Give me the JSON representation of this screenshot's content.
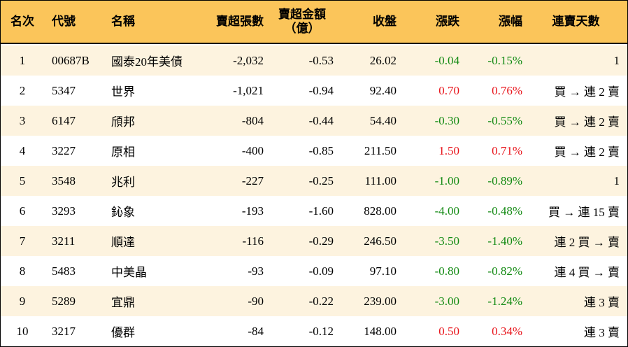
{
  "header": {
    "rank": "名次",
    "code": "代號",
    "name": "名稱",
    "volume": "賣超張數",
    "amount_line1": "賣超金額",
    "amount_line2": "（億）",
    "close": "收盤",
    "change": "漲跌",
    "pct": "漲幅",
    "days": "連賣天數"
  },
  "colors": {
    "header_bg": "#fbc55a",
    "alt_row_bg": "#fdf3df",
    "up": "#e8141b",
    "down": "#138a13"
  },
  "rows": [
    {
      "rank": "1",
      "code": "00687B",
      "name": "國泰20年美債",
      "volume": "-2,032",
      "amount": "-0.53",
      "close": "26.02",
      "change": "-0.04",
      "pct": "-0.15%",
      "days": "1",
      "dir": "down"
    },
    {
      "rank": "2",
      "code": "5347",
      "name": "世界",
      "volume": "-1,021",
      "amount": "-0.94",
      "close": "92.40",
      "change": "0.70",
      "pct": "0.76%",
      "days": "買 → 連 2 賣",
      "dir": "up"
    },
    {
      "rank": "3",
      "code": "6147",
      "name": "頎邦",
      "volume": "-804",
      "amount": "-0.44",
      "close": "54.40",
      "change": "-0.30",
      "pct": "-0.55%",
      "days": "買 → 連 2 賣",
      "dir": "down"
    },
    {
      "rank": "4",
      "code": "3227",
      "name": "原相",
      "volume": "-400",
      "amount": "-0.85",
      "close": "211.50",
      "change": "1.50",
      "pct": "0.71%",
      "days": "買 → 連 2 賣",
      "dir": "up"
    },
    {
      "rank": "5",
      "code": "3548",
      "name": "兆利",
      "volume": "-227",
      "amount": "-0.25",
      "close": "111.00",
      "change": "-1.00",
      "pct": "-0.89%",
      "days": "1",
      "dir": "down"
    },
    {
      "rank": "6",
      "code": "3293",
      "name": "鈊象",
      "volume": "-193",
      "amount": "-1.60",
      "close": "828.00",
      "change": "-4.00",
      "pct": "-0.48%",
      "days": "買 → 連 15 賣",
      "dir": "down"
    },
    {
      "rank": "7",
      "code": "3211",
      "name": "順達",
      "volume": "-116",
      "amount": "-0.29",
      "close": "246.50",
      "change": "-3.50",
      "pct": "-1.40%",
      "days": "連 2 買 → 賣",
      "dir": "down"
    },
    {
      "rank": "8",
      "code": "5483",
      "name": "中美晶",
      "volume": "-93",
      "amount": "-0.09",
      "close": "97.10",
      "change": "-0.80",
      "pct": "-0.82%",
      "days": "連 4 買 → 賣",
      "dir": "down"
    },
    {
      "rank": "9",
      "code": "5289",
      "name": "宜鼎",
      "volume": "-90",
      "amount": "-0.22",
      "close": "239.00",
      "change": "-3.00",
      "pct": "-1.24%",
      "days": "連 3 賣",
      "dir": "down"
    },
    {
      "rank": "10",
      "code": "3217",
      "name": "優群",
      "volume": "-84",
      "amount": "-0.12",
      "close": "148.00",
      "change": "0.50",
      "pct": "0.34%",
      "days": "連 3 賣",
      "dir": "up"
    }
  ]
}
